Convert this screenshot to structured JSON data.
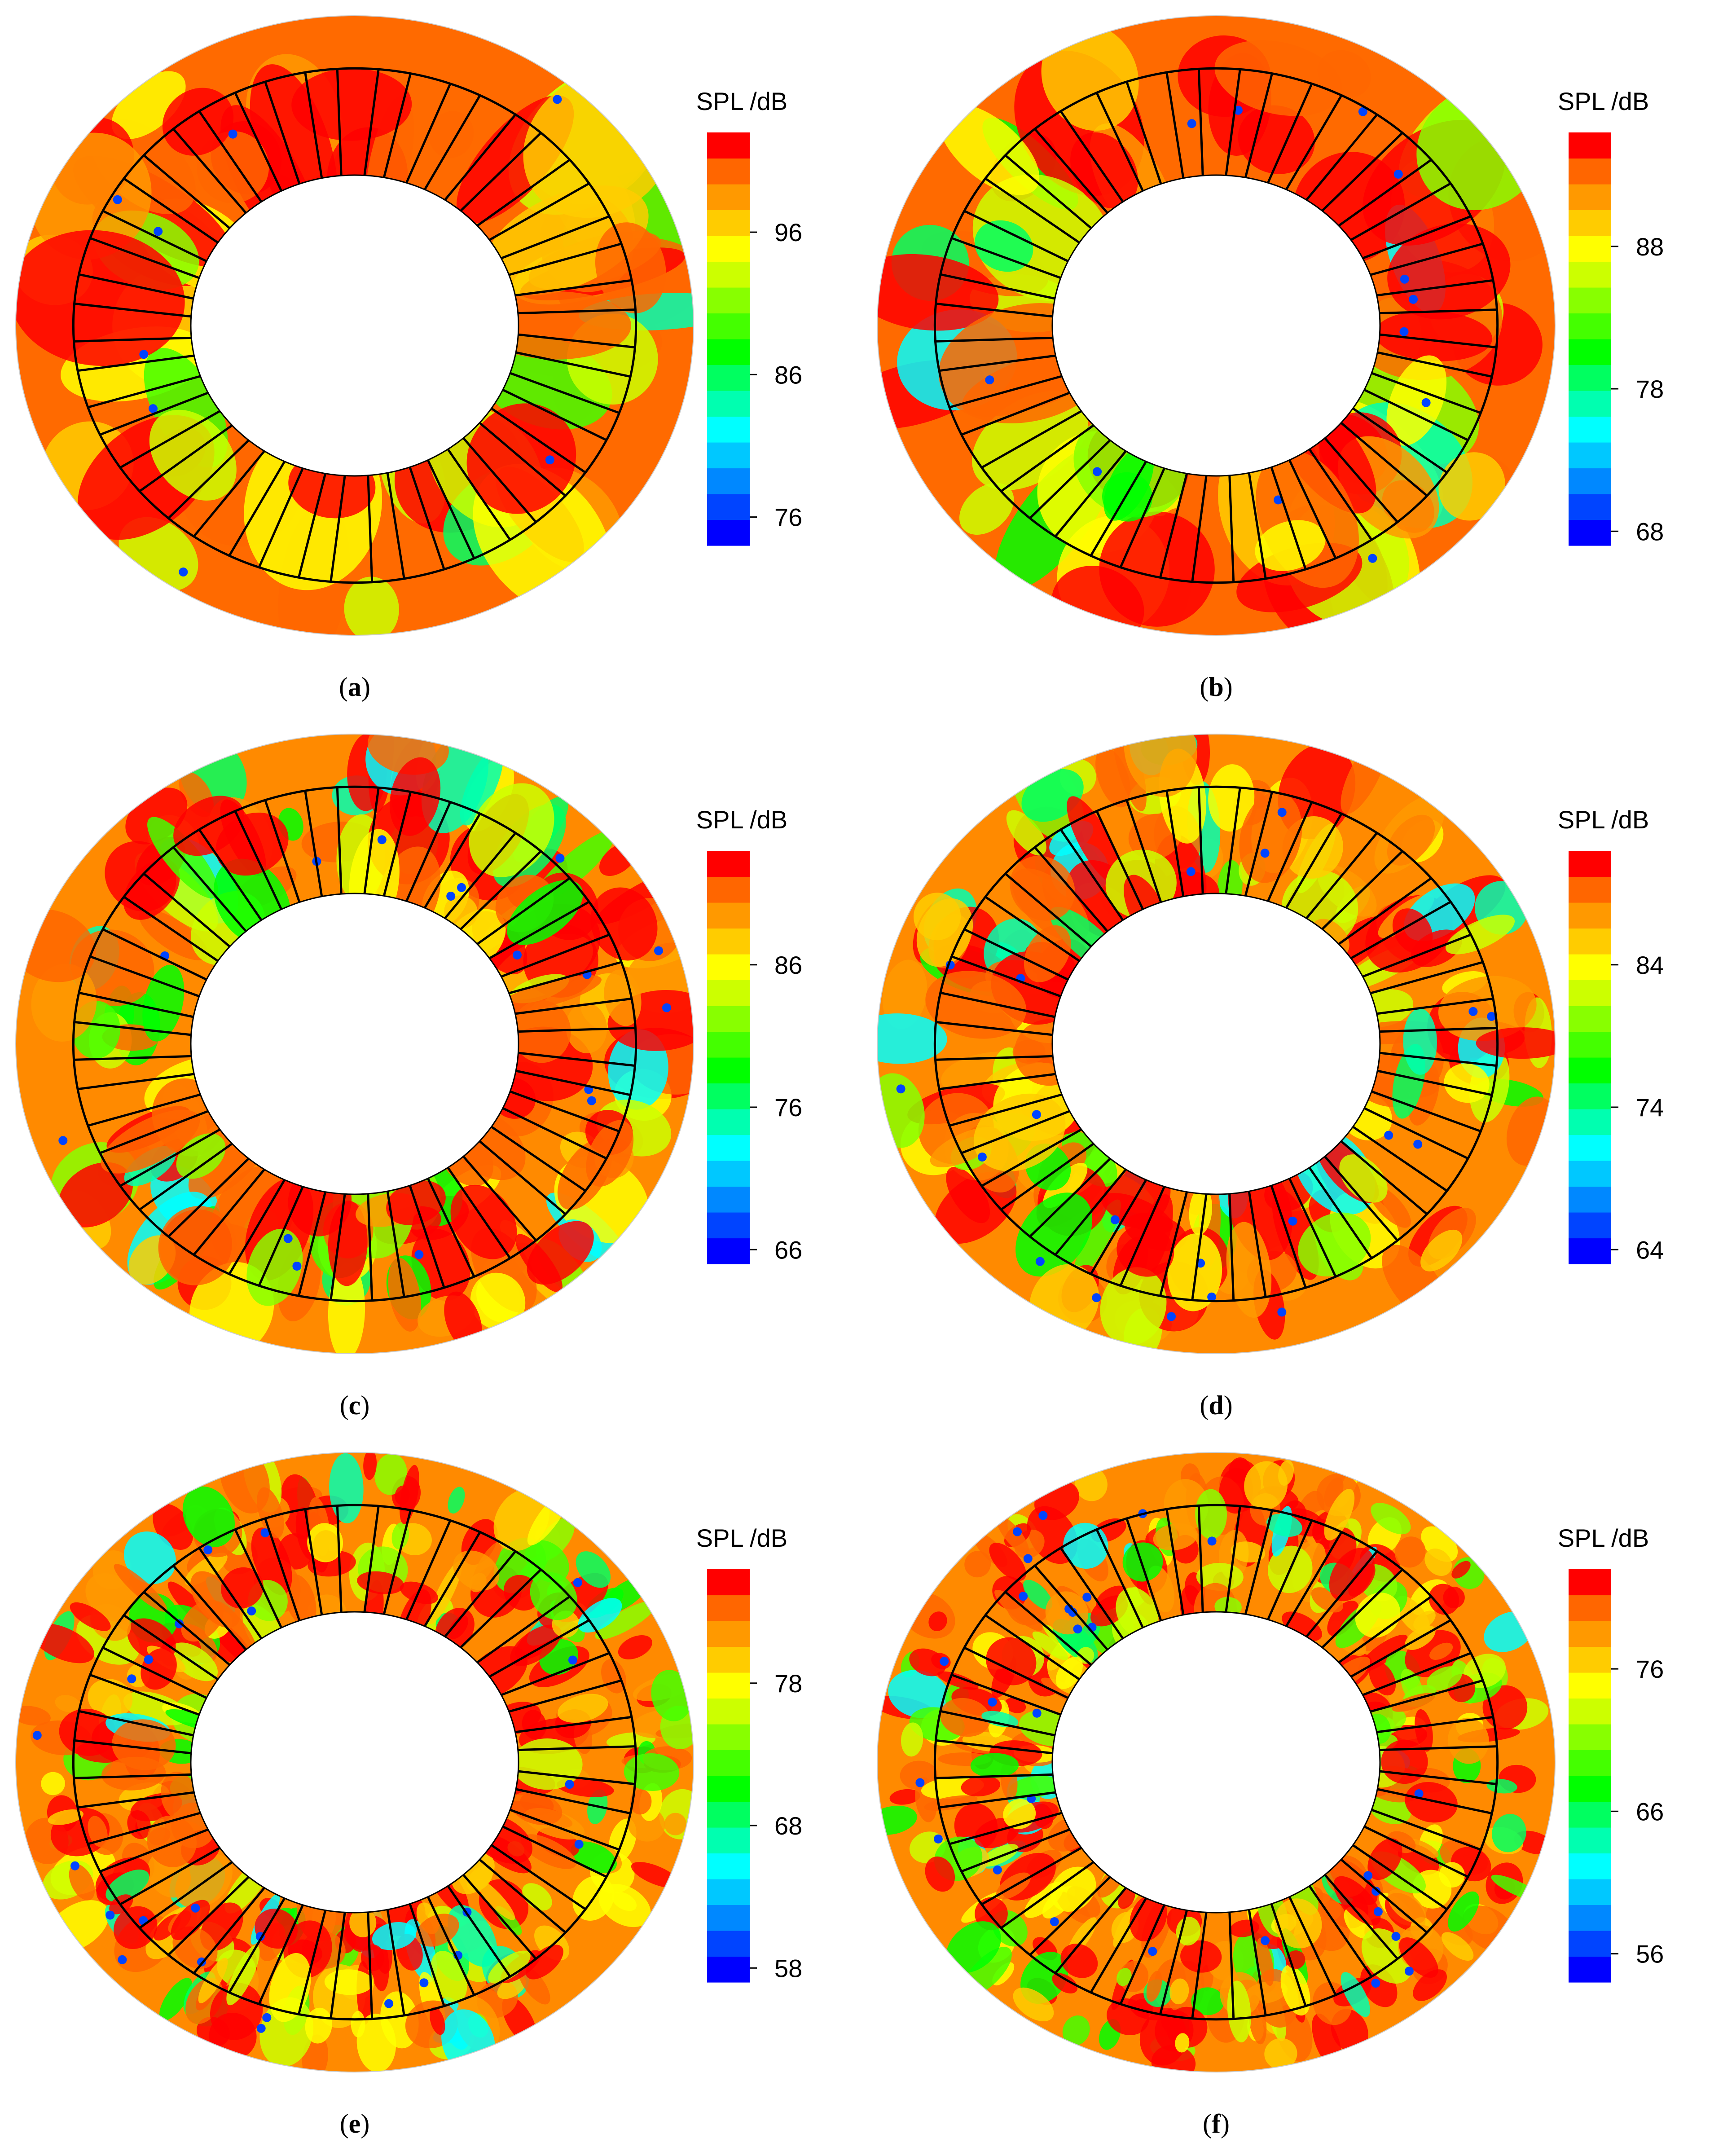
{
  "chart_data": [
    {
      "type": "heatmap",
      "panel": "a",
      "caption_letter": "a",
      "legend_title": "SPL /dB",
      "ticks": [
        "76",
        "86",
        "96"
      ],
      "tick_values": [
        76,
        86,
        96
      ],
      "range": [
        74,
        103
      ],
      "accent": "#ff0000"
    },
    {
      "type": "heatmap",
      "panel": "b",
      "caption_letter": "b",
      "legend_title": "SPL /dB",
      "ticks": [
        "68",
        "78",
        "88"
      ],
      "tick_values": [
        68,
        78,
        88
      ],
      "range": [
        67,
        96
      ],
      "accent": "#ff0000"
    },
    {
      "type": "heatmap",
      "panel": "c",
      "caption_letter": "c",
      "legend_title": "SPL /dB",
      "ticks": [
        "66",
        "76",
        "86"
      ],
      "tick_values": [
        66,
        76,
        86
      ],
      "range": [
        65,
        94
      ],
      "accent": "#ff0000"
    },
    {
      "type": "heatmap",
      "panel": "d",
      "caption_letter": "d",
      "legend_title": "SPL /dB",
      "ticks": [
        "64",
        "74",
        "84"
      ],
      "tick_values": [
        64,
        74,
        84
      ],
      "range": [
        63,
        92
      ],
      "accent": "#ff0000"
    },
    {
      "type": "heatmap",
      "panel": "e",
      "caption_letter": "e",
      "legend_title": "SPL /dB",
      "ticks": [
        "58",
        "68",
        "78"
      ],
      "tick_values": [
        58,
        68,
        78
      ],
      "range": [
        57,
        86
      ],
      "accent": "#ff0000"
    },
    {
      "type": "heatmap",
      "panel": "f",
      "caption_letter": "f",
      "legend_title": "SPL /dB",
      "ticks": [
        "56",
        "66",
        "76"
      ],
      "tick_values": [
        56,
        66,
        76
      ],
      "range": [
        54,
        83
      ],
      "accent": "#ff0000"
    }
  ],
  "colormap": [
    "#0000ff",
    "#0044ff",
    "#0088ff",
    "#00c8ff",
    "#00ffff",
    "#00ffb0",
    "#00ff60",
    "#00ff00",
    "#44ff00",
    "#88ff00",
    "#ccff00",
    "#ffff00",
    "#ffcc00",
    "#ff9900",
    "#ff6600",
    "#ff0000"
  ],
  "blade_count": 24
}
